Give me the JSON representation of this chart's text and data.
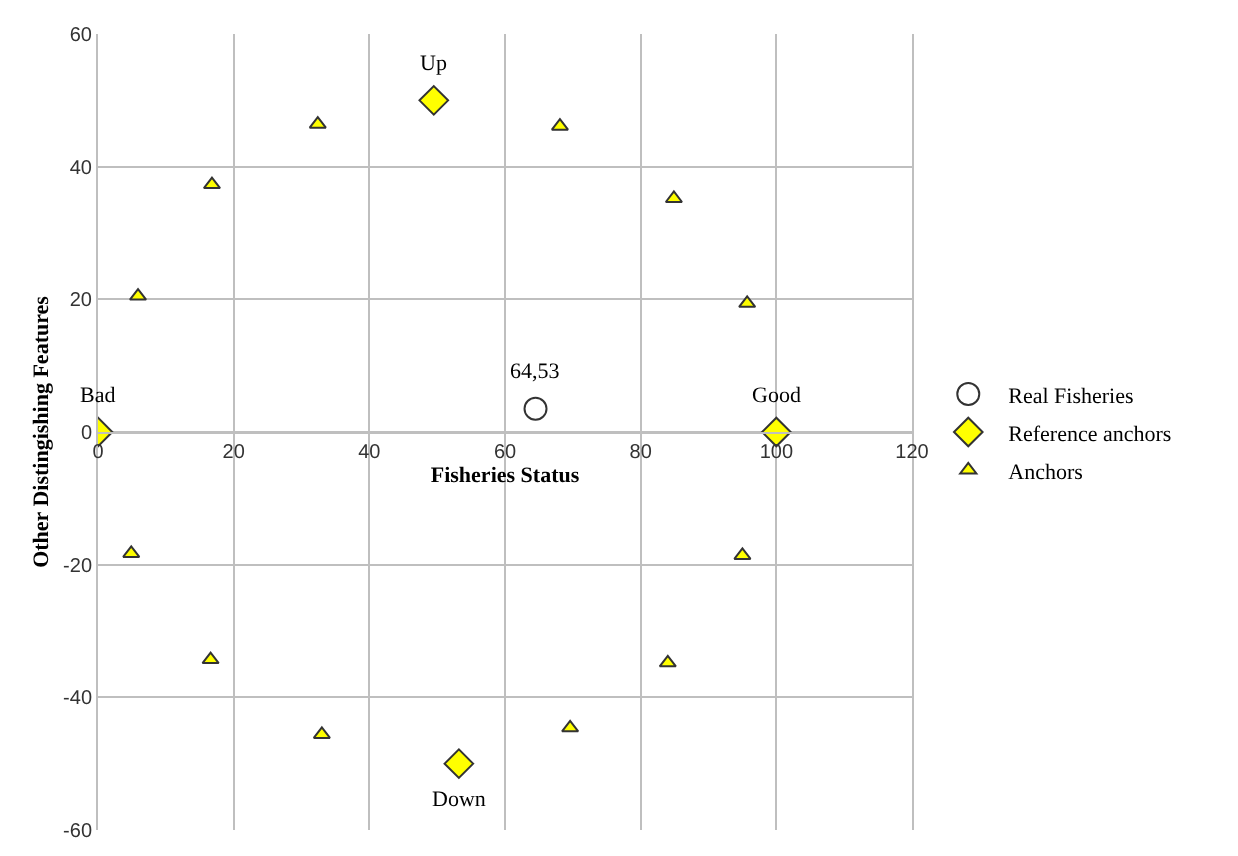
{
  "chart_data": {
    "type": "scatter",
    "xlabel": "Fisheries Status",
    "ylabel": "Other Distingishing Features",
    "xlim": [
      0,
      120
    ],
    "xticks": [
      0,
      20,
      40,
      60,
      80,
      100,
      120
    ],
    "ylim": [
      -60,
      60
    ],
    "yticks": [
      -60,
      -40,
      -20,
      0,
      20,
      40,
      60
    ],
    "grid": true,
    "legend": "right",
    "series": [
      {
        "name": "Real Fisheries",
        "color": "#ffffff",
        "marker": "circle",
        "x": [
          64.5
        ],
        "values": [
          3.5
        ]
      },
      {
        "name": "Reference anchors",
        "color": "#ffff00",
        "marker": "diamond",
        "x": [
          0,
          49.5,
          100,
          53.2
        ],
        "values": [
          0,
          50,
          0,
          -50
        ]
      },
      {
        "name": "Anchors",
        "color": "#ffff00",
        "marker": "triangle",
        "x": [
          5.9,
          16.8,
          32.4,
          68.1,
          84.9,
          95.7,
          4.9,
          16.6,
          33.0,
          69.6,
          95.0,
          84.0
        ],
        "values": [
          20.5,
          37.3,
          46.4,
          46.1,
          35.2,
          19.4,
          -18.3,
          -34.3,
          -45.6,
          -44.6,
          -18.6,
          -34.8
        ]
      }
    ],
    "annotations": [
      {
        "text": "Bad",
        "x": 0,
        "y": 0
      },
      {
        "text": "Up",
        "x": 49.5,
        "y": 50
      },
      {
        "text": "Good",
        "x": 100,
        "y": 0
      },
      {
        "text": "Down",
        "x": 53.2,
        "y": -50
      },
      {
        "text": "64,53",
        "x": 64.5,
        "y": 3.5
      }
    ]
  }
}
